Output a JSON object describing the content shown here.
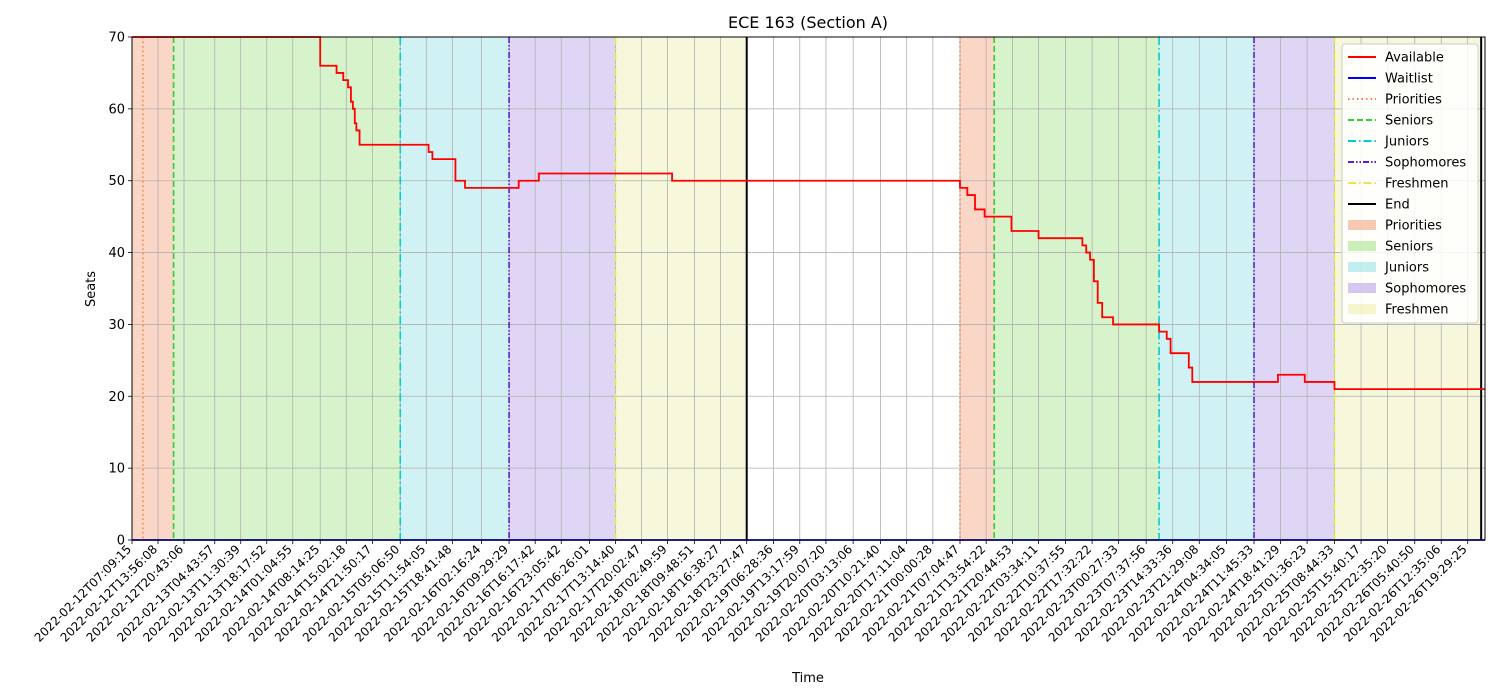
{
  "chart_data": {
    "type": "line",
    "title": "ECE 163 (Section A)",
    "xlabel": "Time",
    "ylabel": "Seats",
    "ylim": [
      0,
      70
    ],
    "yticks": [
      0,
      10,
      20,
      30,
      40,
      50,
      60,
      70
    ],
    "xlim": [
      "2022-02-12T07:09:15",
      "2022-02-27T00:00:00"
    ],
    "grid": true,
    "legend_position": "top-right",
    "xtick_labels": [
      "2022-02-12T07:09:15",
      "2022-02-12T13:56:08",
      "2022-02-12T20:43:06",
      "2022-02-13T04:43:57",
      "2022-02-13T11:30:39",
      "2022-02-13T18:17:52",
      "2022-02-14T01:04:55",
      "2022-02-14T08:14:25",
      "2022-02-14T15:02:18",
      "2022-02-14T21:50:17",
      "2022-02-15T05:06:50",
      "2022-02-15T11:54:05",
      "2022-02-15T18:41:48",
      "2022-02-16T02:16:24",
      "2022-02-16T09:29:29",
      "2022-02-16T16:17:42",
      "2022-02-16T23:05:42",
      "2022-02-17T06:26:01",
      "2022-02-17T13:14:40",
      "2022-02-17T20:02:47",
      "2022-02-18T02:49:59",
      "2022-02-18T09:48:51",
      "2022-02-18T16:38:27",
      "2022-02-18T23:27:47",
      "2022-02-19T06:28:36",
      "2022-02-19T13:17:59",
      "2022-02-19T20:07:20",
      "2022-02-20T03:13:06",
      "2022-02-20T10:21:40",
      "2022-02-20T17:11:04",
      "2022-02-21T00:00:28",
      "2022-02-21T07:04:47",
      "2022-02-21T13:54:22",
      "2022-02-21T20:44:53",
      "2022-02-22T03:34:11",
      "2022-02-22T10:37:55",
      "2022-02-22T17:32:22",
      "2022-02-23T00:27:33",
      "2022-02-23T07:37:56",
      "2022-02-23T14:33:36",
      "2022-02-23T21:29:08",
      "2022-02-24T04:34:05",
      "2022-02-24T11:45:33",
      "2022-02-24T18:41:29",
      "2022-02-25T01:36:23",
      "2022-02-25T08:44:33",
      "2022-02-25T15:40:17",
      "2022-02-25T22:35:20",
      "2022-02-26T05:40:50",
      "2022-02-26T12:35:06",
      "2022-02-26T19:29:25"
    ],
    "series": [
      {
        "name": "Available",
        "color": "#ff0000",
        "x": [
          "2022-02-12T07:09:15",
          "2022-02-14T08:14:25",
          "2022-02-14T09:00:00",
          "2022-02-14T12:30:00",
          "2022-02-14T14:15:00",
          "2022-02-14T15:30:00",
          "2022-02-14T16:15:00",
          "2022-02-14T16:45:00",
          "2022-02-14T17:15:00",
          "2022-02-14T17:40:00",
          "2022-02-14T18:00:00",
          "2022-02-14T18:30:00",
          "2022-02-14T18:50:00",
          "2022-02-14T21:00:00",
          "2022-02-15T12:30:00",
          "2022-02-15T13:30:00",
          "2022-02-15T19:00:00",
          "2022-02-15T19:30:00",
          "2022-02-15T22:00:00",
          "2022-02-16T09:29:29",
          "2022-02-16T12:00:00",
          "2022-02-16T17:15:00",
          "2022-02-17T12:00:00",
          "2022-02-18T04:00:00",
          "2022-02-18T23:27:47",
          "2022-02-21T07:04:47",
          "2022-02-21T09:00:00",
          "2022-02-21T11:00:00",
          "2022-02-21T12:00:00",
          "2022-02-21T13:30:00",
          "2022-02-21T16:00:00",
          "2022-02-21T20:30:00",
          "2022-02-21T21:30:00",
          "2022-02-22T03:34:11",
          "2022-02-22T13:00:00",
          "2022-02-22T15:00:00",
          "2022-02-22T16:00:00",
          "2022-02-22T17:00:00",
          "2022-02-22T18:00:00",
          "2022-02-22T19:00:00",
          "2022-02-22T19:40:00",
          "2022-02-22T20:10:00",
          "2022-02-22T23:00:00",
          "2022-02-23T00:00:00",
          "2022-02-23T00:40:00",
          "2022-02-23T10:30:00",
          "2022-02-23T11:00:00",
          "2022-02-23T13:00:00",
          "2022-02-23T14:00:00",
          "2022-02-23T18:00:00",
          "2022-02-23T18:45:00",
          "2022-02-23T19:40:00",
          "2022-02-24T11:30:00",
          "2022-02-24T18:00:00",
          "2022-02-25T01:00:00",
          "2022-02-25T08:44:33",
          "2022-02-27T00:00:00"
        ],
        "values": [
          70,
          66,
          66,
          65,
          64,
          63,
          61,
          60,
          58,
          57,
          57,
          55,
          55,
          55,
          54,
          53,
          53,
          50,
          49,
          49,
          50,
          51,
          51,
          50,
          50,
          49,
          48,
          46,
          46,
          45,
          45,
          43,
          43,
          42,
          42,
          41,
          40,
          39,
          36,
          33,
          33,
          31,
          30,
          30,
          30,
          30,
          29,
          28,
          26,
          26,
          24,
          22,
          22,
          23,
          22,
          21,
          21
        ]
      },
      {
        "name": "Waitlist",
        "color": "#0000ff",
        "x": [
          "2022-02-12T07:09:15",
          "2022-02-27T00:00:00"
        ],
        "values": [
          0,
          0
        ]
      }
    ],
    "markers": [
      {
        "name": "Priorities",
        "color": "#ff7f50",
        "style": "dotted",
        "x": [
          "2022-02-12T10:00:00",
          "2022-02-21T07:04:47"
        ]
      },
      {
        "name": "Seniors",
        "color": "#32cd32",
        "style": "dashed",
        "x": [
          "2022-02-12T18:00:00",
          "2022-02-21T16:00:00"
        ]
      },
      {
        "name": "Juniors",
        "color": "#00ced1",
        "style": "dashdot",
        "x": [
          "2022-02-15T05:06:50",
          "2022-02-23T11:00:00"
        ]
      },
      {
        "name": "Sophomores",
        "color": "#5a1fd8",
        "style": "dashdotdot",
        "x": [
          "2022-02-16T09:29:29",
          "2022-02-24T11:45:33"
        ]
      },
      {
        "name": "Freshmen",
        "color": "#e8e84a",
        "style": "dashdot",
        "x": [
          "2022-02-17T13:14:40",
          "2022-02-25T08:44:33"
        ]
      },
      {
        "name": "End",
        "color": "#000000",
        "style": "solid",
        "x": [
          "2022-02-18T23:27:47",
          "2022-02-26T23:00:00"
        ]
      }
    ],
    "spans": [
      {
        "name": "Priorities",
        "color": "#f4a582",
        "x": [
          [
            "2022-02-12T07:09:15",
            "2022-02-12T18:00:00"
          ],
          [
            "2022-02-21T07:04:47",
            "2022-02-21T16:00:00"
          ]
        ]
      },
      {
        "name": "Seniors",
        "color": "#a6e58c",
        "x": [
          [
            "2022-02-12T18:00:00",
            "2022-02-15T05:06:50"
          ],
          [
            "2022-02-21T16:00:00",
            "2022-02-23T11:00:00"
          ]
        ]
      },
      {
        "name": "Juniors",
        "color": "#9ae3e8",
        "x": [
          [
            "2022-02-15T05:06:50",
            "2022-02-16T09:29:29"
          ],
          [
            "2022-02-23T11:00:00",
            "2022-02-24T11:45:33"
          ]
        ]
      },
      {
        "name": "Sophomores",
        "color": "#b9a3e8",
        "x": [
          [
            "2022-02-16T09:29:29",
            "2022-02-17T13:14:40"
          ],
          [
            "2022-02-24T11:45:33",
            "2022-02-25T08:44:33"
          ]
        ]
      },
      {
        "name": "Freshmen",
        "color": "#eeeeb0",
        "x": [
          [
            "2022-02-17T13:14:40",
            "2022-02-18T23:27:47"
          ],
          [
            "2022-02-25T08:44:33",
            "2022-02-26T23:00:00"
          ]
        ]
      }
    ],
    "legend": [
      {
        "label": "Available",
        "kind": "line",
        "color": "#ff0000",
        "style": "solid"
      },
      {
        "label": "Waitlist",
        "kind": "line",
        "color": "#0000ff",
        "style": "solid"
      },
      {
        "label": "Priorities",
        "kind": "line",
        "color": "#ff7f50",
        "style": "dotted"
      },
      {
        "label": "Seniors",
        "kind": "line",
        "color": "#32cd32",
        "style": "dashed"
      },
      {
        "label": "Juniors",
        "kind": "line",
        "color": "#00ced1",
        "style": "dashdot"
      },
      {
        "label": "Sophomores",
        "kind": "line",
        "color": "#5a1fd8",
        "style": "dashdotdot"
      },
      {
        "label": "Freshmen",
        "kind": "line",
        "color": "#e8e84a",
        "style": "dashdot"
      },
      {
        "label": "End",
        "kind": "line",
        "color": "#000000",
        "style": "solid"
      },
      {
        "label": "Priorities",
        "kind": "patch",
        "color": "#f4a582"
      },
      {
        "label": "Seniors",
        "kind": "patch",
        "color": "#a6e58c"
      },
      {
        "label": "Juniors",
        "kind": "patch",
        "color": "#9ae3e8"
      },
      {
        "label": "Sophomores",
        "kind": "patch",
        "color": "#b9a3e8"
      },
      {
        "label": "Freshmen",
        "kind": "patch",
        "color": "#eeeeb0"
      }
    ]
  }
}
